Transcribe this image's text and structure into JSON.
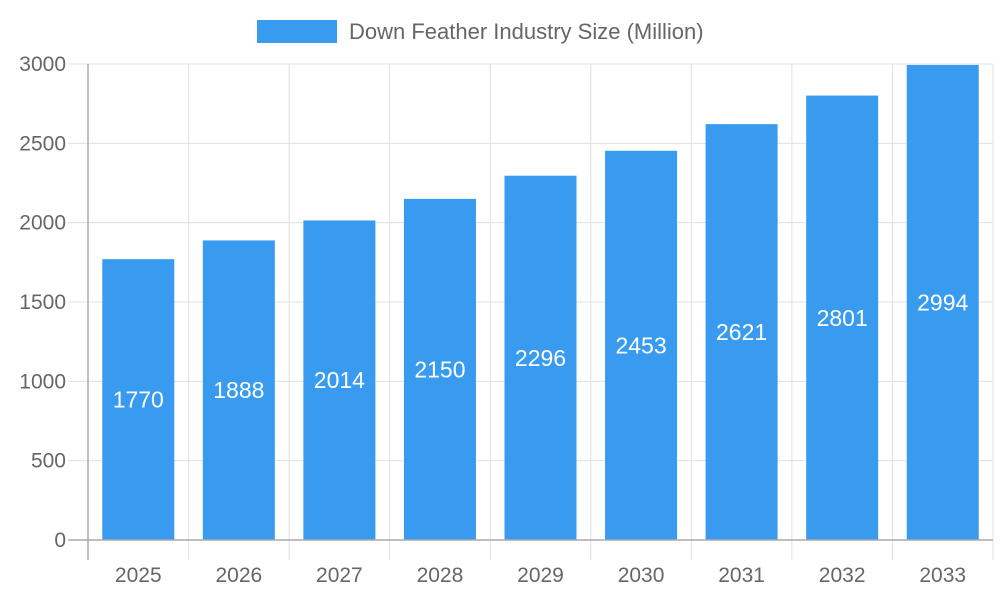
{
  "chart_data": {
    "type": "bar",
    "title": "",
    "xlabel": "",
    "ylabel": "",
    "categories": [
      "2025",
      "2026",
      "2027",
      "2028",
      "2029",
      "2030",
      "2031",
      "2032",
      "2033"
    ],
    "series": [
      {
        "name": "Down Feather Industry Size (Million)",
        "values": [
          1770,
          1888,
          2014,
          2150,
          2296,
          2453,
          2621,
          2801,
          2994
        ],
        "color": "#389bef"
      }
    ],
    "ylim": [
      0,
      3000
    ],
    "yticks": [
      0,
      500,
      1000,
      1500,
      2000,
      2500,
      3000
    ],
    "grid": true,
    "legend_position": "top",
    "data_labels": true
  }
}
